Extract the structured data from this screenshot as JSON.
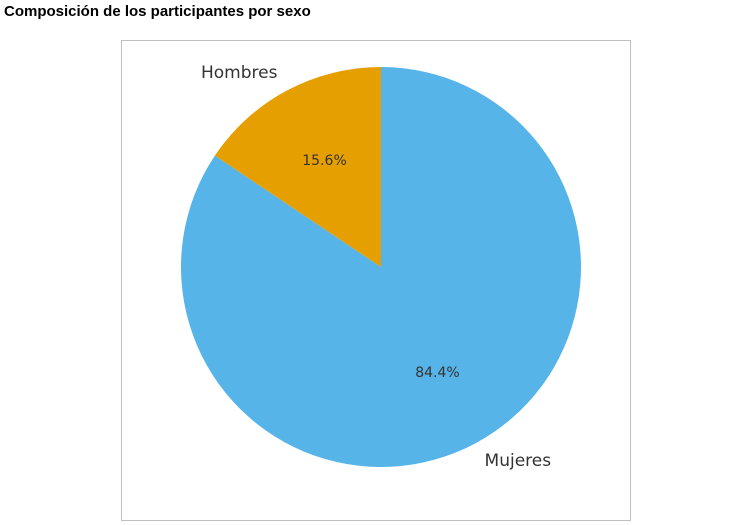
{
  "chart_data": {
    "type": "pie",
    "title": "Composición de los participantes por sexo",
    "categories": [
      "Mujeres",
      "Hombres"
    ],
    "values": [
      84.4,
      15.6
    ],
    "value_labels": [
      "84.4%",
      "15.6%"
    ],
    "colors": [
      "#56b4e9",
      "#e69f00"
    ],
    "start_angle_deg": 90,
    "direction": "clockwise",
    "legend": "none"
  }
}
